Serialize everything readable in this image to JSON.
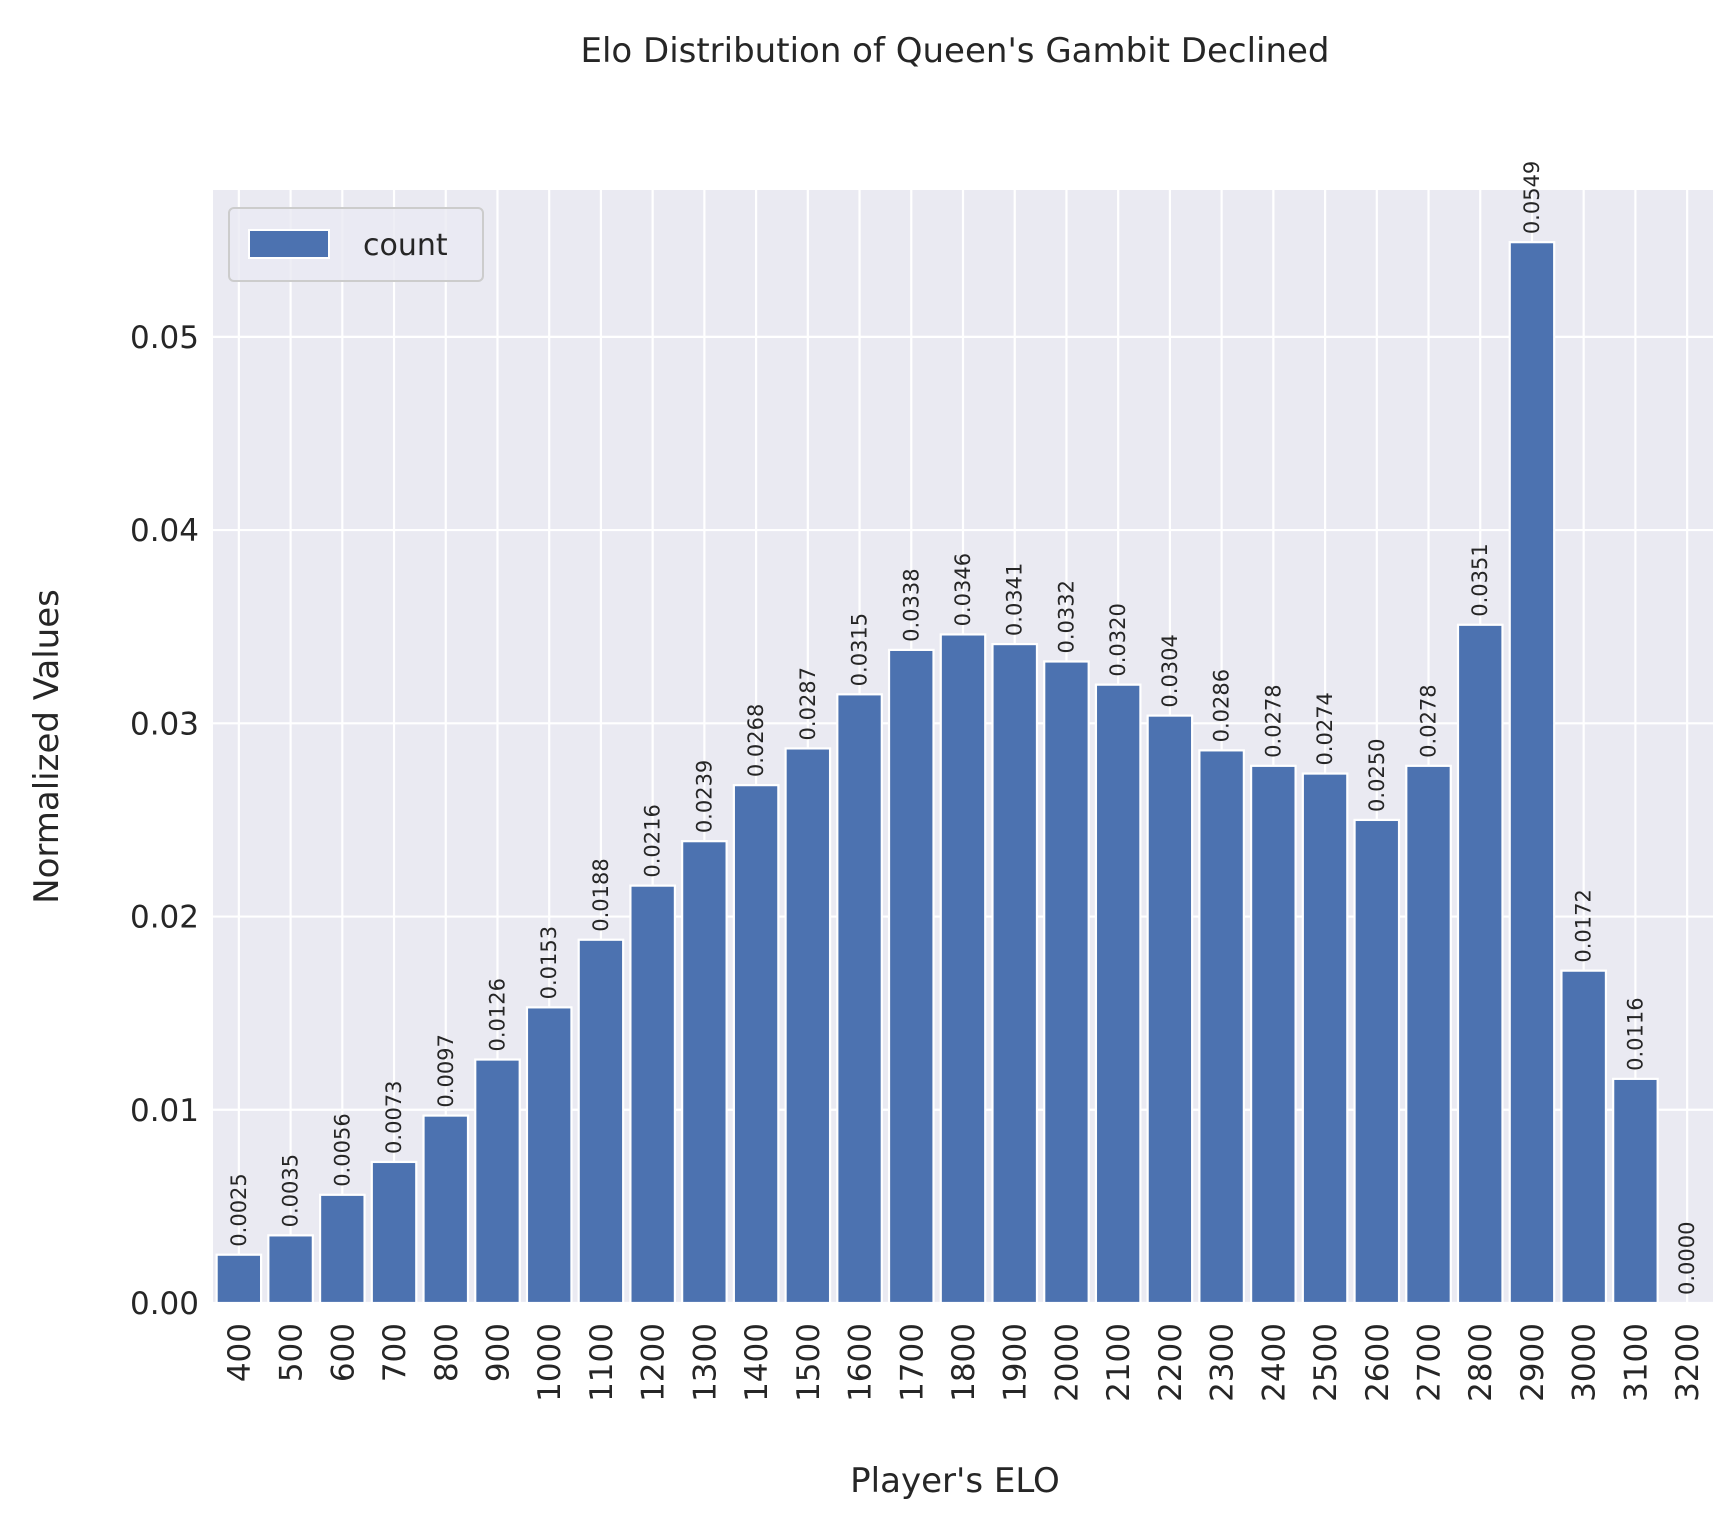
{
  "chart_data": {
    "type": "bar",
    "title": "Elo Distribution of Queen's Gambit Declined",
    "xlabel": "Player's ELO",
    "ylabel": "Normalized Values",
    "categories": [
      "400",
      "500",
      "600",
      "700",
      "800",
      "900",
      "1000",
      "1100",
      "1200",
      "1300",
      "1400",
      "1500",
      "1600",
      "1700",
      "1800",
      "1900",
      "2000",
      "2100",
      "2200",
      "2300",
      "2400",
      "2500",
      "2600",
      "2700",
      "2800",
      "2900",
      "3000",
      "3100",
      "3200"
    ],
    "series": [
      {
        "name": "count",
        "color": "#4c72b0",
        "values": [
          0.0025,
          0.0035,
          0.0056,
          0.0073,
          0.0097,
          0.0126,
          0.0153,
          0.0188,
          0.0216,
          0.0239,
          0.0268,
          0.0287,
          0.0315,
          0.0338,
          0.0346,
          0.0341,
          0.0332,
          0.032,
          0.0304,
          0.0286,
          0.0278,
          0.0274,
          0.025,
          0.0278,
          0.0351,
          0.0549,
          0.0172,
          0.0116,
          0.0
        ],
        "labels": [
          "0.0025",
          "0.0035",
          "0.0056",
          "0.0073",
          "0.0097",
          "0.0126",
          "0.0153",
          "0.0188",
          "0.0216",
          "0.0239",
          "0.0268",
          "0.0287",
          "0.0315",
          "0.0338",
          "0.0346",
          "0.0341",
          "0.0332",
          "0.0320",
          "0.0304",
          "0.0286",
          "0.0278",
          "0.0274",
          "0.0250",
          "0.0278",
          "0.0351",
          "0.0549",
          "0.0172",
          "0.0116",
          "0.0000"
        ]
      }
    ],
    "ylim": [
      0,
      0.0576
    ],
    "yticks": [
      0.0,
      0.01,
      0.02,
      0.03,
      0.04,
      0.05
    ],
    "ytick_labels": [
      "0.00",
      "0.01",
      "0.02",
      "0.03",
      "0.04",
      "0.05"
    ],
    "grid": true,
    "legend": {
      "placement": "top-left",
      "entries": [
        "count"
      ]
    },
    "background_color": "#eaeaf2",
    "grid_color": "#ffffff"
  }
}
